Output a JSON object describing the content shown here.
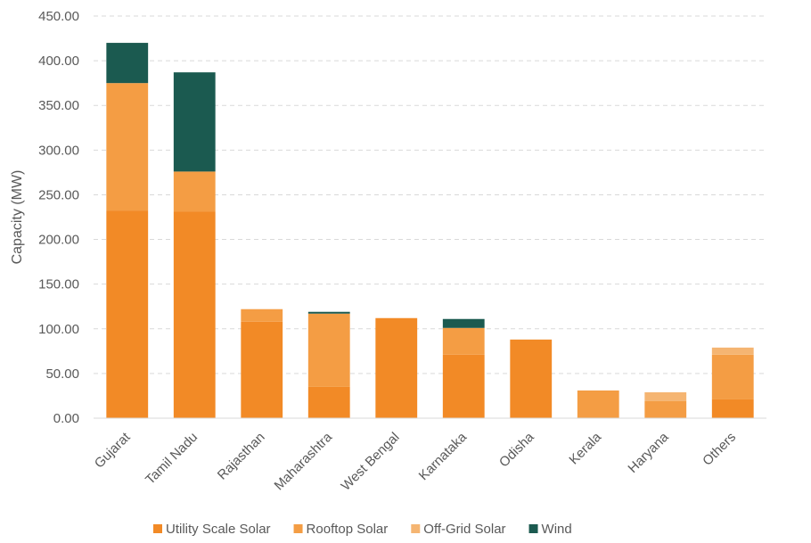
{
  "chart_data": {
    "type": "bar",
    "stacked": true,
    "ylabel": "Capacity (MW)",
    "ylim": [
      0,
      450
    ],
    "yticks": [
      "0.00",
      "50.00",
      "100.00",
      "150.00",
      "200.00",
      "250.00",
      "300.00",
      "350.00",
      "400.00",
      "450.00"
    ],
    "grid": "horizontal-dashed",
    "legend_position": "bottom",
    "categories": [
      "Gujarat",
      "Tamil Nadu",
      "Rajasthan",
      "Maharashtra",
      "West Bengal",
      "Karnataka",
      "Odisha",
      "Kerala",
      "Haryana",
      "Others"
    ],
    "series": [
      {
        "name": "Utility Scale Solar",
        "color": "#F28A26",
        "values": [
          232,
          231,
          108,
          35,
          112,
          71,
          88,
          0,
          0,
          21
        ]
      },
      {
        "name": "Rooftop Solar",
        "color": "#F49D44",
        "values": [
          143,
          45,
          14,
          82,
          0,
          30,
          0,
          31,
          19,
          50
        ]
      },
      {
        "name": "Off-Grid Solar",
        "color": "#F5B572",
        "values": [
          0,
          0,
          0,
          0,
          0,
          0,
          0,
          0,
          10,
          8
        ]
      },
      {
        "name": "Wind",
        "color": "#1B5A50",
        "values": [
          45,
          111,
          0,
          2,
          0,
          10,
          0,
          0,
          0,
          0
        ]
      }
    ]
  }
}
